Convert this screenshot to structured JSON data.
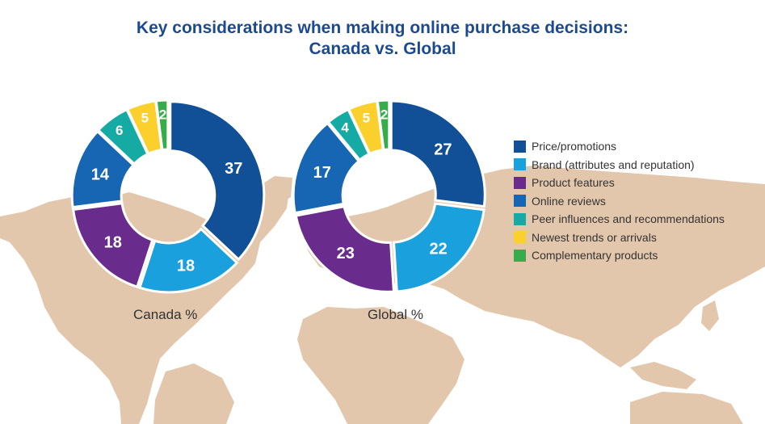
{
  "title_line1": "Key considerations when making online purchase decisions:",
  "title_line2": "Canada vs. Global",
  "colors": {
    "background_map": "#e3c7ac",
    "title": "#1d4a8f",
    "label_text": "#ffffff"
  },
  "chart_data": [
    {
      "type": "pie",
      "variant": "donut",
      "label": "Canada %",
      "categories": [
        "Price/promotions",
        "Brand (attributes and reputation)",
        "Product features",
        "Online reviews",
        "Peer influences and recommendations",
        "Newest trends or arrivals",
        "Complementary products"
      ],
      "values": [
        37,
        18,
        18,
        14,
        6,
        5,
        2
      ],
      "colors": [
        "#114f96",
        "#1aa0dc",
        "#6a2c8c",
        "#1666b4",
        "#16aaa4",
        "#fbd02c",
        "#36ad4a"
      ]
    },
    {
      "type": "pie",
      "variant": "donut",
      "label": "Global %",
      "categories": [
        "Price/promotions",
        "Brand (attributes and reputation)",
        "Product features",
        "Online reviews",
        "Peer influences and recommendations",
        "Newest trends or arrivals",
        "Complementary products"
      ],
      "values": [
        27,
        22,
        23,
        17,
        4,
        5,
        2
      ],
      "colors": [
        "#114f96",
        "#1aa0dc",
        "#6a2c8c",
        "#1666b4",
        "#16aaa4",
        "#fbd02c",
        "#36ad4a"
      ]
    }
  ],
  "legend": {
    "position": "right",
    "items": [
      {
        "label": "Price/promotions",
        "color": "#114f96"
      },
      {
        "label": "Brand (attributes and reputation)",
        "color": "#1aa0dc"
      },
      {
        "label": "Product features",
        "color": "#6a2c8c"
      },
      {
        "label": "Online reviews",
        "color": "#1666b4"
      },
      {
        "label": "Peer influences and recommendations",
        "color": "#16aaa4"
      },
      {
        "label": "Newest trends or arrivals",
        "color": "#fbd02c"
      },
      {
        "label": "Complementary products",
        "color": "#36ad4a"
      }
    ]
  }
}
